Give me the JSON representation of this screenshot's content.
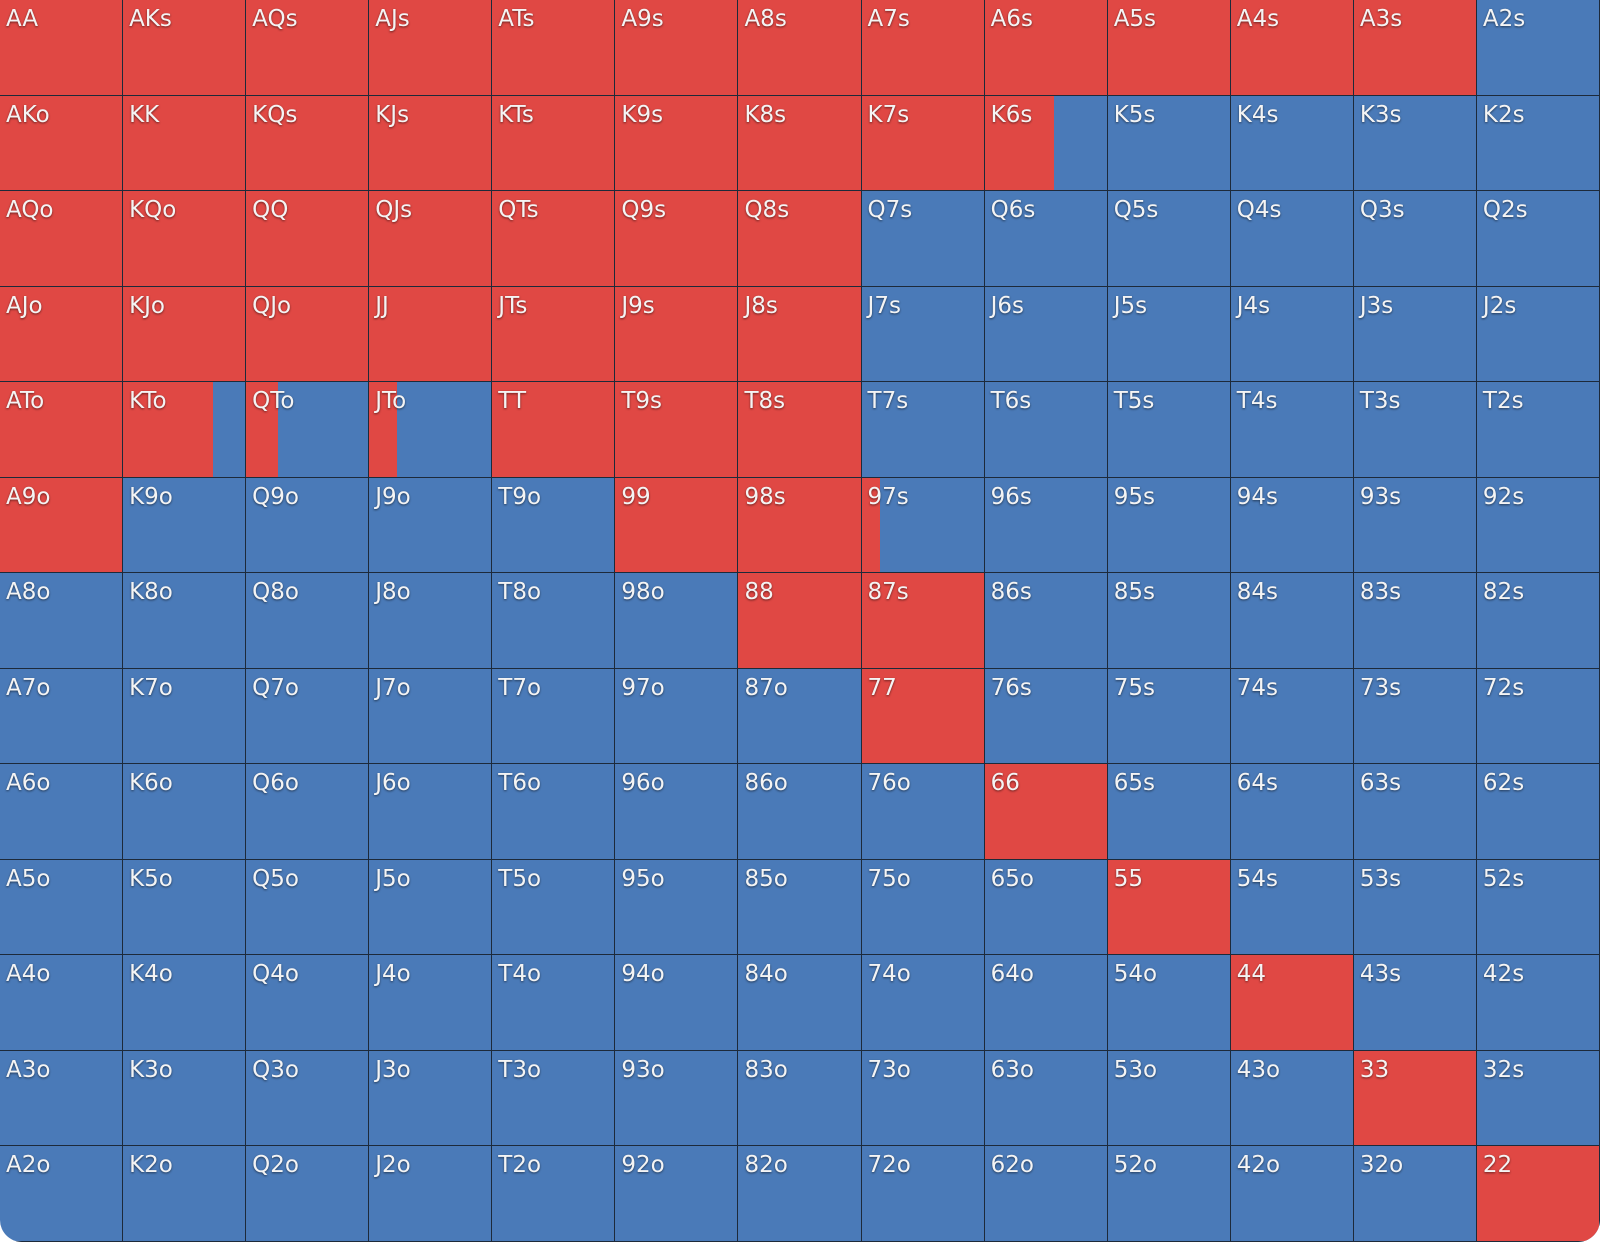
{
  "grid": {
    "colors": {
      "raise": "#e04844",
      "other": "#4a7ab8"
    },
    "rows": [
      {
        "hands": [
          "AA",
          "AKs",
          "AQs",
          "AJs",
          "ATs",
          "A9s",
          "A8s",
          "A7s",
          "A6s",
          "A5s",
          "A4s",
          "A3s",
          "A2s"
        ],
        "raise_pct": [
          100,
          100,
          100,
          100,
          100,
          100,
          100,
          100,
          100,
          100,
          100,
          100,
          0
        ]
      },
      {
        "hands": [
          "AKo",
          "KK",
          "KQs",
          "KJs",
          "KTs",
          "K9s",
          "K8s",
          "K7s",
          "K6s",
          "K5s",
          "K4s",
          "K3s",
          "K2s"
        ],
        "raise_pct": [
          100,
          100,
          100,
          100,
          100,
          100,
          100,
          100,
          57,
          0,
          0,
          0,
          0
        ]
      },
      {
        "hands": [
          "AQo",
          "KQo",
          "QQ",
          "QJs",
          "QTs",
          "Q9s",
          "Q8s",
          "Q7s",
          "Q6s",
          "Q5s",
          "Q4s",
          "Q3s",
          "Q2s"
        ],
        "raise_pct": [
          100,
          100,
          100,
          100,
          100,
          100,
          100,
          0,
          0,
          0,
          0,
          0,
          0
        ]
      },
      {
        "hands": [
          "AJo",
          "KJo",
          "QJo",
          "JJ",
          "JTs",
          "J9s",
          "J8s",
          "J7s",
          "J6s",
          "J5s",
          "J4s",
          "J3s",
          "J2s"
        ],
        "raise_pct": [
          100,
          100,
          100,
          100,
          100,
          100,
          100,
          0,
          0,
          0,
          0,
          0,
          0
        ]
      },
      {
        "hands": [
          "ATo",
          "KTo",
          "QTo",
          "JTo",
          "TT",
          "T9s",
          "T8s",
          "T7s",
          "T6s",
          "T5s",
          "T4s",
          "T3s",
          "T2s"
        ],
        "raise_pct": [
          100,
          74,
          26,
          23,
          100,
          100,
          100,
          0,
          0,
          0,
          0,
          0,
          0
        ]
      },
      {
        "hands": [
          "A9o",
          "K9o",
          "Q9o",
          "J9o",
          "T9o",
          "99",
          "98s",
          "97s",
          "96s",
          "95s",
          "94s",
          "93s",
          "92s"
        ],
        "raise_pct": [
          100,
          0,
          0,
          0,
          0,
          100,
          100,
          15,
          0,
          0,
          0,
          0,
          0
        ]
      },
      {
        "hands": [
          "A8o",
          "K8o",
          "Q8o",
          "J8o",
          "T8o",
          "98o",
          "88",
          "87s",
          "86s",
          "85s",
          "84s",
          "83s",
          "82s"
        ],
        "raise_pct": [
          0,
          0,
          0,
          0,
          0,
          0,
          100,
          100,
          0,
          0,
          0,
          0,
          0
        ]
      },
      {
        "hands": [
          "A7o",
          "K7o",
          "Q7o",
          "J7o",
          "T7o",
          "97o",
          "87o",
          "77",
          "76s",
          "75s",
          "74s",
          "73s",
          "72s"
        ],
        "raise_pct": [
          0,
          0,
          0,
          0,
          0,
          0,
          0,
          100,
          0,
          0,
          0,
          0,
          0
        ]
      },
      {
        "hands": [
          "A6o",
          "K6o",
          "Q6o",
          "J6o",
          "T6o",
          "96o",
          "86o",
          "76o",
          "66",
          "65s",
          "64s",
          "63s",
          "62s"
        ],
        "raise_pct": [
          0,
          0,
          0,
          0,
          0,
          0,
          0,
          0,
          100,
          0,
          0,
          0,
          0
        ]
      },
      {
        "hands": [
          "A5o",
          "K5o",
          "Q5o",
          "J5o",
          "T5o",
          "95o",
          "85o",
          "75o",
          "65o",
          "55",
          "54s",
          "53s",
          "52s"
        ],
        "raise_pct": [
          0,
          0,
          0,
          0,
          0,
          0,
          0,
          0,
          0,
          100,
          0,
          0,
          0
        ]
      },
      {
        "hands": [
          "A4o",
          "K4o",
          "Q4o",
          "J4o",
          "T4o",
          "94o",
          "84o",
          "74o",
          "64o",
          "54o",
          "44",
          "43s",
          "42s"
        ],
        "raise_pct": [
          0,
          0,
          0,
          0,
          0,
          0,
          0,
          0,
          0,
          0,
          100,
          0,
          0
        ]
      },
      {
        "hands": [
          "A3o",
          "K3o",
          "Q3o",
          "J3o",
          "T3o",
          "93o",
          "83o",
          "73o",
          "63o",
          "53o",
          "43o",
          "33",
          "32s"
        ],
        "raise_pct": [
          0,
          0,
          0,
          0,
          0,
          0,
          0,
          0,
          0,
          0,
          0,
          100,
          0
        ]
      },
      {
        "hands": [
          "A2o",
          "K2o",
          "Q2o",
          "J2o",
          "T2o",
          "92o",
          "82o",
          "72o",
          "62o",
          "52o",
          "42o",
          "32o",
          "22"
        ],
        "raise_pct": [
          0,
          0,
          0,
          0,
          0,
          0,
          0,
          0,
          0,
          0,
          0,
          0,
          100
        ]
      }
    ]
  }
}
